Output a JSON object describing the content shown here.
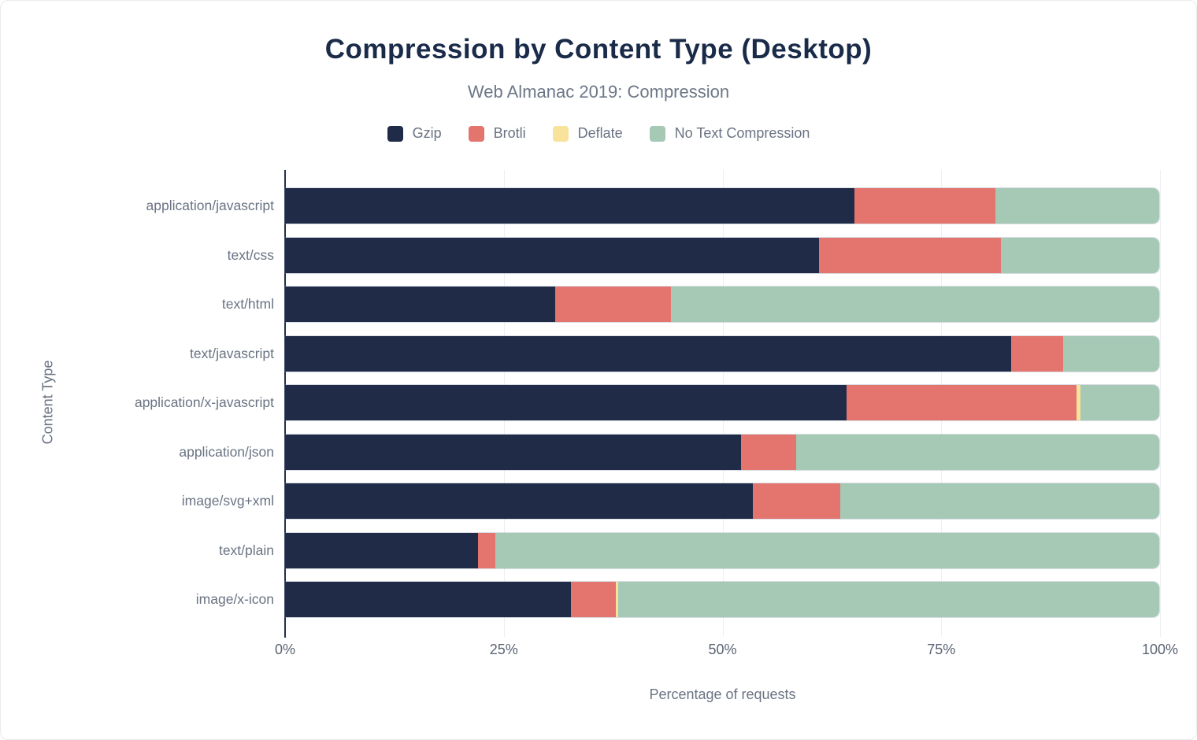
{
  "chart_data": {
    "type": "bar",
    "stacked": true,
    "orientation": "horizontal",
    "title": "Compression by Content Type (Desktop)",
    "subtitle": "Web Almanac 2019: Compression",
    "xlabel": "Percentage of requests",
    "ylabel": "Content Type",
    "xlim": [
      0,
      100
    ],
    "x_ticks": [
      {
        "label": "0%",
        "value": 0
      },
      {
        "label": "25%",
        "value": 25
      },
      {
        "label": "50%",
        "value": 50
      },
      {
        "label": "75%",
        "value": 75
      },
      {
        "label": "100%",
        "value": 100
      }
    ],
    "grid": true,
    "legend_position": "top",
    "categories": [
      "application/javascript",
      "text/css",
      "text/html",
      "text/javascript",
      "application/x-javascript",
      "application/json",
      "image/svg+xml",
      "text/plain",
      "image/x-icon"
    ],
    "series": [
      {
        "name": "Gzip",
        "color": "#1f2b47",
        "values": [
          65.1,
          61.1,
          30.9,
          83.1,
          64.2,
          52.2,
          53.5,
          22.1,
          32.7
        ]
      },
      {
        "name": "Brotli",
        "color": "#e3746e",
        "values": [
          16.2,
          20.8,
          13.2,
          5.9,
          26.3,
          6.3,
          10.0,
          2.0,
          5.1
        ]
      },
      {
        "name": "Deflate",
        "color": "#f9e29b",
        "values": [
          0,
          0,
          0,
          0,
          0.5,
          0,
          0,
          0,
          0.3
        ]
      },
      {
        "name": "No Text Compression",
        "color": "#a6c9b6",
        "values": [
          18.7,
          18.1,
          55.9,
          11.0,
          9.0,
          41.5,
          36.5,
          75.9,
          61.9
        ]
      }
    ],
    "colors": {
      "title": "#1a2b49",
      "axis_line": "#22304e",
      "gridline": "#edeff2",
      "label_text": "#6a7383",
      "tick_text": "#5a6474",
      "background": "#ffffff"
    }
  }
}
